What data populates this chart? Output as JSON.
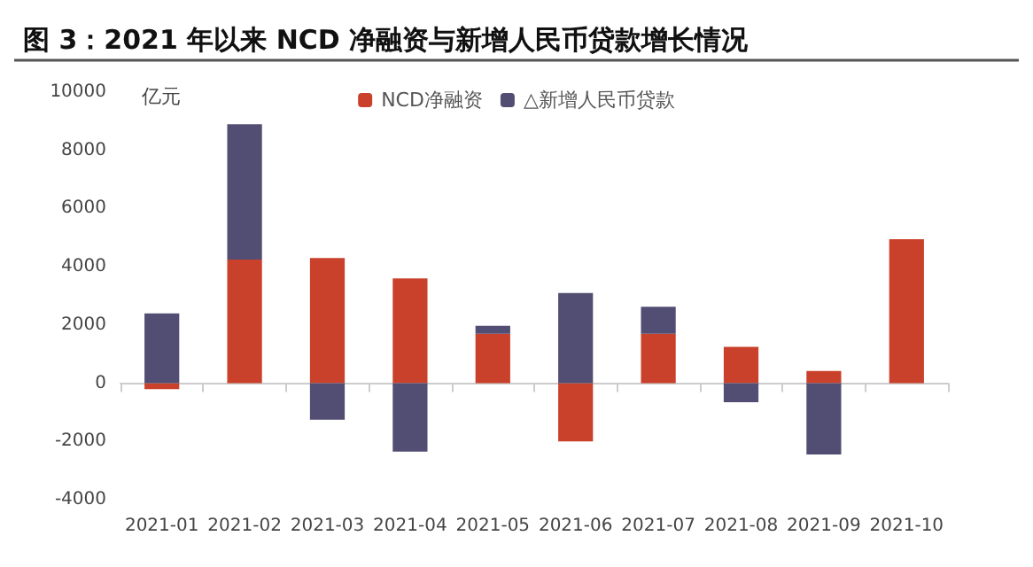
{
  "chart_data": {
    "type": "bar",
    "stacked": true,
    "title": "图 3：2021 年以来 NCD 净融资与新增人民币贷款增长情况",
    "ylabel": "亿元",
    "categories": [
      "2021-01",
      "2021-02",
      "2021-03",
      "2021-04",
      "2021-05",
      "2021-06",
      "2021-07",
      "2021-08",
      "2021-09",
      "2021-10"
    ],
    "series": [
      {
        "name": "NCD净融资",
        "color": "#c9412a",
        "values": [
          -200,
          4250,
          4300,
          3600,
          1700,
          -2000,
          1700,
          1250,
          420,
          4950
        ]
      },
      {
        "name": "△新增人民币贷款",
        "color": "#524d72",
        "values": [
          2400,
          4650,
          -1250,
          -2350,
          270,
          3100,
          930,
          -650,
          -2450,
          null
        ]
      }
    ],
    "ylim": [
      -4000,
      10000
    ],
    "yticks": [
      -4000,
      -2000,
      0,
      2000,
      4000,
      6000,
      8000,
      10000
    ],
    "legend": "top"
  }
}
